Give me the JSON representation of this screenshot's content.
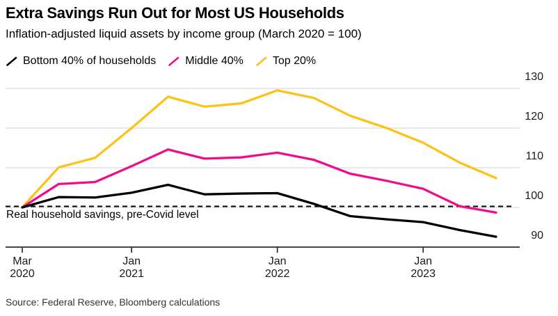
{
  "header": {
    "title": "Extra Savings Run Out for Most US Households",
    "subtitle": "Inflation-adjusted liquid assets by income group (March 2020 = 100)"
  },
  "legend": [
    {
      "label": "Bottom 40% of households",
      "color": "#000000"
    },
    {
      "label": "Middle 40%",
      "color": "#F00D8C"
    },
    {
      "label": "Top 20%",
      "color": "#FCC216"
    }
  ],
  "annotation": {
    "dashed_line_label": "Real household savings, pre-Covid level",
    "dashed_line_value": 100
  },
  "source": "Source: Federal Reserve, Bloomberg calculations",
  "colors": {
    "grid": "#DBDBDB",
    "axis": "#2B2B2B",
    "dashed": "#000000",
    "background": "#FFFFFF"
  },
  "chart_data": {
    "type": "line",
    "title": "Extra Savings Run Out for Most US Households",
    "subtitle": "Inflation-adjusted liquid assets by income group (March 2020 = 100)",
    "x": [
      "Mar 2020",
      "Jun 2020",
      "Sep 2020",
      "Dec 2020",
      "Mar 2021",
      "Jun 2021",
      "Sep 2021",
      "Dec 2021",
      "Mar 2022",
      "Jun 2022",
      "Sep 2022",
      "Dec 2022",
      "Mar 2023",
      "Jun 2023"
    ],
    "series": [
      {
        "id": "bottom-40",
        "name": "Bottom 40% of households",
        "color": "#000000",
        "values": [
          100,
          102.6,
          102.5,
          103.7,
          105.7,
          103.3,
          103.5,
          103.6,
          100.9,
          97.8,
          97.0,
          96.3,
          94.3,
          92.6
        ]
      },
      {
        "id": "middle-40",
        "name": "Middle 40%",
        "color": "#F00D8C",
        "values": [
          100,
          105.9,
          106.4,
          110.4,
          114.6,
          112.3,
          112.6,
          113.8,
          112.0,
          108.5,
          106.7,
          104.7,
          100.3,
          98.7
        ]
      },
      {
        "id": "top-20",
        "name": "Top 20%",
        "color": "#FCC216",
        "values": [
          100,
          110.1,
          112.5,
          120.0,
          127.9,
          125.4,
          126.2,
          129.5,
          127.6,
          123.1,
          120.0,
          116.3,
          111.3,
          107.4
        ]
      }
    ],
    "y_ticks": [
      90,
      100,
      110,
      120,
      130
    ],
    "ylim": [
      90,
      130
    ],
    "x_tick_labels": [
      {
        "index": 0,
        "line1": "Mar",
        "line2": "2020"
      },
      {
        "index": 3,
        "line1": "Jan",
        "line2": "2021"
      },
      {
        "index": 7,
        "line1": "Jan",
        "line2": "2022"
      },
      {
        "index": 11,
        "line1": "Jan",
        "line2": "2023"
      }
    ],
    "grid": "horizontal",
    "legend_position": "top",
    "baseline_annotation": "Real household savings, pre-Covid level"
  }
}
